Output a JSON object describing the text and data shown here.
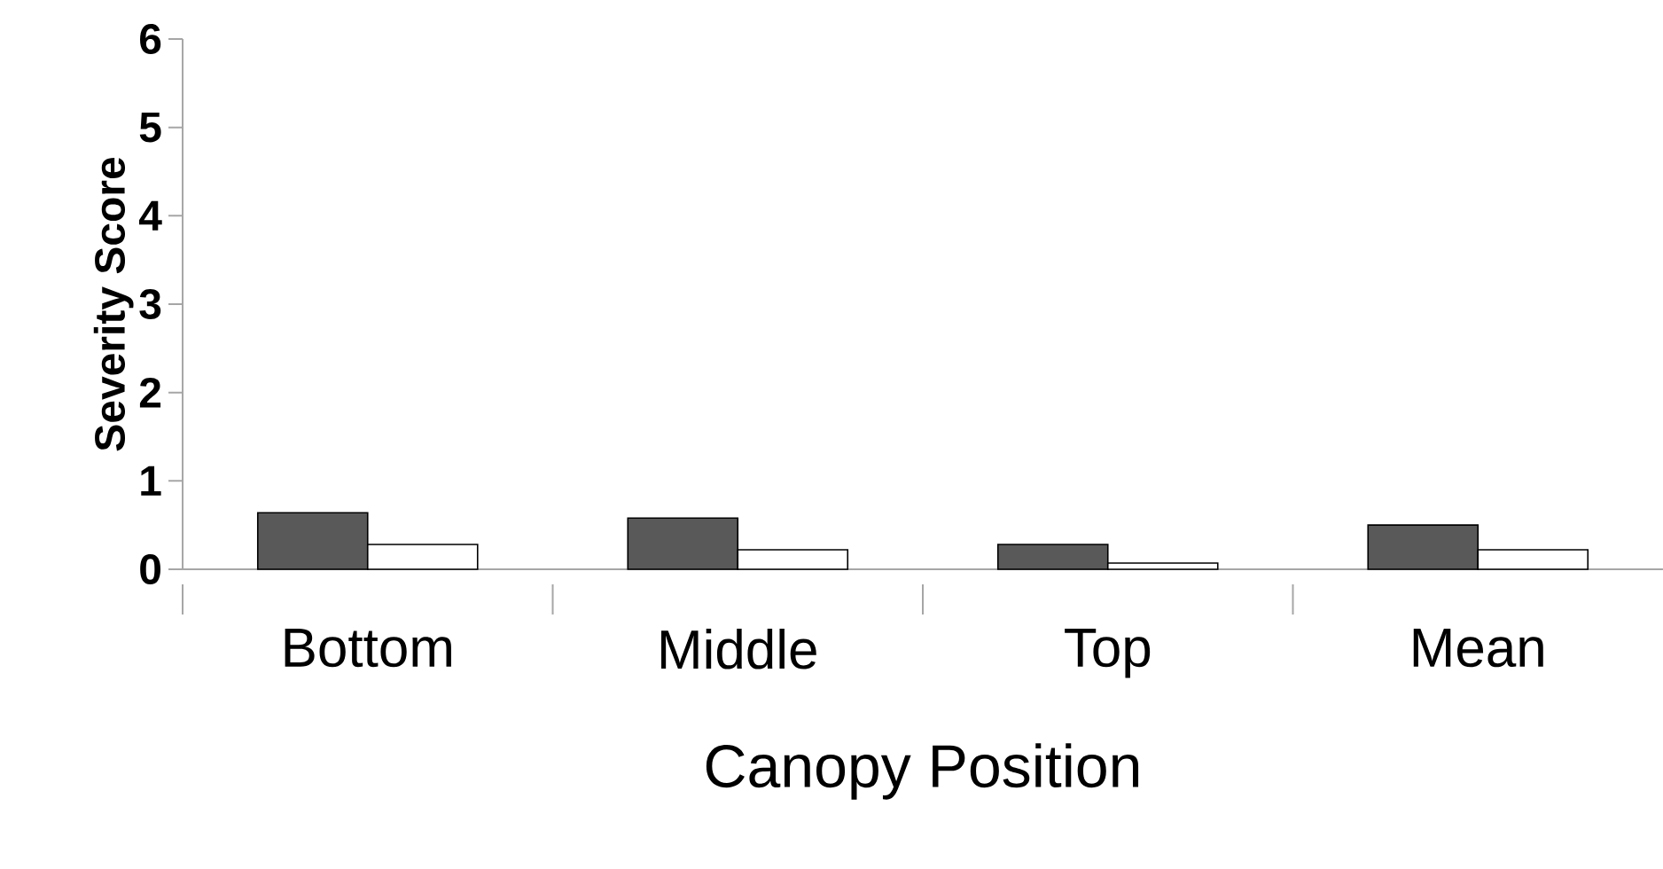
{
  "chart_data": {
    "type": "bar",
    "xlabel": "Canopy Position",
    "ylabel": "Severity Score",
    "categories": [
      "Bottom",
      "Middle",
      "Top",
      "Mean"
    ],
    "series": [
      {
        "color": "#595959",
        "values": [
          0.64,
          0.58,
          0.28,
          0.5
        ]
      },
      {
        "color": "#ffffff",
        "values": [
          0.28,
          0.22,
          0.07,
          0.22
        ]
      }
    ],
    "ylim": [
      0,
      6
    ],
    "yticks": [
      0,
      1,
      2,
      3,
      4,
      5,
      6
    ],
    "grid": false
  }
}
